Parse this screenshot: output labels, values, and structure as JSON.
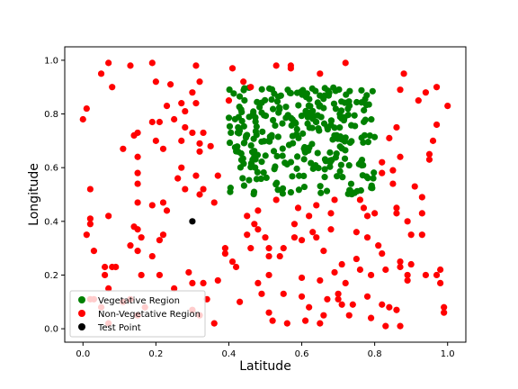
{
  "chart_data": {
    "type": "scatter",
    "xlabel": "Latitude",
    "ylabel": "Longitude",
    "xlim": [
      -0.05,
      1.05
    ],
    "ylim": [
      -0.05,
      1.05
    ],
    "xticks": [
      "0.0",
      "0.2",
      "0.4",
      "0.6",
      "0.8",
      "1.0"
    ],
    "yticks": [
      "0.0",
      "0.2",
      "0.4",
      "0.6",
      "0.8",
      "1.0"
    ],
    "xtick_values": [
      0.0,
      0.2,
      0.4,
      0.6,
      0.8,
      1.0
    ],
    "ytick_values": [
      0.0,
      0.2,
      0.4,
      0.6,
      0.8,
      1.0
    ],
    "grid": false,
    "legend_position": "lower-left",
    "colors": {
      "vegetative": "#008000",
      "non_vegetative": "#ff0000",
      "test": "#000000"
    },
    "series": [
      {
        "name": "Vegetative Region",
        "color": "#008000",
        "generated": {
          "x_range": [
            0.4,
            0.8
          ],
          "y_range": [
            0.5,
            0.9
          ],
          "count": 300,
          "seed": 7
        }
      },
      {
        "name": "Non-Vegetative Region",
        "color": "#ff0000",
        "points": [
          [
            0.0,
            0.78
          ],
          [
            0.01,
            0.82
          ],
          [
            0.02,
            0.52
          ],
          [
            0.02,
            0.41
          ],
          [
            0.02,
            0.39
          ],
          [
            0.01,
            0.35
          ],
          [
            0.03,
            0.29
          ],
          [
            0.02,
            0.11
          ],
          [
            0.03,
            0.11
          ],
          [
            0.05,
            0.95
          ],
          [
            0.07,
            0.99
          ],
          [
            0.08,
            0.9
          ],
          [
            0.07,
            0.42
          ],
          [
            0.06,
            0.2
          ],
          [
            0.06,
            0.23
          ],
          [
            0.08,
            0.23
          ],
          [
            0.09,
            0.23
          ],
          [
            0.07,
            0.15
          ],
          [
            0.05,
            0.08
          ],
          [
            0.07,
            0.02
          ],
          [
            0.11,
            0.67
          ],
          [
            0.13,
            0.98
          ],
          [
            0.15,
            0.73
          ],
          [
            0.14,
            0.72
          ],
          [
            0.15,
            0.64
          ],
          [
            0.15,
            0.58
          ],
          [
            0.15,
            0.54
          ],
          [
            0.15,
            0.47
          ],
          [
            0.14,
            0.38
          ],
          [
            0.15,
            0.37
          ],
          [
            0.16,
            0.34
          ],
          [
            0.13,
            0.31
          ],
          [
            0.15,
            0.29
          ],
          [
            0.16,
            0.2
          ],
          [
            0.13,
            0.11
          ],
          [
            0.11,
            0.1
          ],
          [
            0.17,
            0.08
          ],
          [
            0.15,
            0.05
          ],
          [
            0.19,
            0.99
          ],
          [
            0.2,
            0.92
          ],
          [
            0.19,
            0.77
          ],
          [
            0.21,
            0.77
          ],
          [
            0.2,
            0.7
          ],
          [
            0.22,
            0.67
          ],
          [
            0.22,
            0.47
          ],
          [
            0.23,
            0.44
          ],
          [
            0.19,
            0.46
          ],
          [
            0.22,
            0.35
          ],
          [
            0.21,
            0.33
          ],
          [
            0.21,
            0.2
          ],
          [
            0.19,
            0.27
          ],
          [
            0.24,
            0.91
          ],
          [
            0.23,
            0.83
          ],
          [
            0.25,
            0.78
          ],
          [
            0.27,
            0.84
          ],
          [
            0.28,
            0.81
          ],
          [
            0.28,
            0.75
          ],
          [
            0.27,
            0.7
          ],
          [
            0.27,
            0.6
          ],
          [
            0.26,
            0.56
          ],
          [
            0.28,
            0.52
          ],
          [
            0.29,
            0.21
          ],
          [
            0.3,
            0.17
          ],
          [
            0.3,
            0.07
          ],
          [
            0.31,
            0.98
          ],
          [
            0.3,
            0.88
          ],
          [
            0.32,
            0.92
          ],
          [
            0.31,
            0.84
          ],
          [
            0.33,
            0.73
          ],
          [
            0.3,
            0.73
          ],
          [
            0.32,
            0.69
          ],
          [
            0.32,
            0.66
          ],
          [
            0.31,
            0.57
          ],
          [
            0.33,
            0.52
          ],
          [
            0.32,
            0.5
          ],
          [
            0.33,
            0.17
          ],
          [
            0.34,
            0.11
          ],
          [
            0.32,
            0.05
          ],
          [
            0.35,
            0.68
          ],
          [
            0.37,
            0.57
          ],
          [
            0.36,
            0.47
          ],
          [
            0.37,
            0.18
          ],
          [
            0.39,
            0.28
          ],
          [
            0.39,
            0.3
          ],
          [
            0.41,
            0.97
          ],
          [
            0.4,
            0.85
          ],
          [
            0.41,
            0.25
          ],
          [
            0.42,
            0.23
          ],
          [
            0.43,
            0.1
          ],
          [
            0.44,
            0.92
          ],
          [
            0.46,
            0.9
          ],
          [
            0.45,
            0.42
          ],
          [
            0.45,
            0.35
          ],
          [
            0.46,
            0.3
          ],
          [
            0.47,
            0.39
          ],
          [
            0.48,
            0.37
          ],
          [
            0.48,
            0.17
          ],
          [
            0.48,
            0.44
          ],
          [
            0.49,
            0.13
          ],
          [
            0.5,
            0.34
          ],
          [
            0.51,
            0.3
          ],
          [
            0.51,
            0.27
          ],
          [
            0.51,
            0.2
          ],
          [
            0.51,
            0.06
          ],
          [
            0.52,
            0.03
          ],
          [
            0.53,
            0.98
          ],
          [
            0.53,
            0.48
          ],
          [
            0.54,
            0.27
          ],
          [
            0.55,
            0.3
          ],
          [
            0.55,
            0.13
          ],
          [
            0.56,
            0.02
          ],
          [
            0.57,
            0.97
          ],
          [
            0.57,
            0.98
          ],
          [
            0.58,
            0.39
          ],
          [
            0.59,
            0.45
          ],
          [
            0.6,
            0.33
          ],
          [
            0.6,
            0.19
          ],
          [
            0.6,
            0.12
          ],
          [
            0.61,
            0.03
          ],
          [
            0.62,
            0.42
          ],
          [
            0.62,
            0.08
          ],
          [
            0.63,
            0.36
          ],
          [
            0.64,
            0.46
          ],
          [
            0.65,
            0.95
          ],
          [
            0.64,
            0.34
          ],
          [
            0.65,
            0.02
          ],
          [
            0.65,
            0.18
          ],
          [
            0.66,
            0.29
          ],
          [
            0.66,
            0.05
          ],
          [
            0.67,
            0.11
          ],
          [
            0.68,
            0.43
          ],
          [
            0.68,
            0.37
          ],
          [
            0.69,
            0.48
          ],
          [
            0.69,
            0.21
          ],
          [
            0.7,
            0.13
          ],
          [
            0.7,
            0.11
          ],
          [
            0.71,
            0.24
          ],
          [
            0.71,
            0.09
          ],
          [
            0.72,
            0.99
          ],
          [
            0.72,
            0.17
          ],
          [
            0.74,
            0.09
          ],
          [
            0.75,
            0.36
          ],
          [
            0.75,
            0.26
          ],
          [
            0.76,
            0.22
          ],
          [
            0.76,
            0.48
          ],
          [
            0.77,
            0.45
          ],
          [
            0.78,
            0.42
          ],
          [
            0.78,
            0.34
          ],
          [
            0.78,
            0.12
          ],
          [
            0.79,
            0.2
          ],
          [
            0.79,
            0.04
          ],
          [
            0.8,
            0.43
          ],
          [
            0.81,
            0.31
          ],
          [
            0.82,
            0.62
          ],
          [
            0.82,
            0.58
          ],
          [
            0.82,
            0.28
          ],
          [
            0.83,
            0.22
          ],
          [
            0.82,
            0.09
          ],
          [
            0.83,
            0.01
          ],
          [
            0.84,
            0.71
          ],
          [
            0.85,
            0.59
          ],
          [
            0.85,
            0.54
          ],
          [
            0.86,
            0.43
          ],
          [
            0.87,
            0.89
          ],
          [
            0.86,
            0.75
          ],
          [
            0.87,
            0.64
          ],
          [
            0.86,
            0.45
          ],
          [
            0.87,
            0.25
          ],
          [
            0.87,
            0.23
          ],
          [
            0.87,
            0.01
          ],
          [
            0.86,
            0.07
          ],
          [
            0.88,
            0.95
          ],
          [
            0.89,
            0.18
          ],
          [
            0.89,
            0.2
          ],
          [
            0.89,
            0.4
          ],
          [
            0.9,
            0.24
          ],
          [
            0.9,
            0.35
          ],
          [
            0.91,
            0.53
          ],
          [
            0.94,
            0.88
          ],
          [
            0.94,
            0.2
          ],
          [
            0.93,
            0.49
          ],
          [
            0.93,
            0.43
          ],
          [
            0.93,
            0.35
          ],
          [
            0.95,
            0.65
          ],
          [
            0.95,
            0.63
          ],
          [
            0.96,
            0.7
          ],
          [
            0.97,
            0.76
          ],
          [
            0.97,
            0.2
          ],
          [
            0.97,
            0.9
          ],
          [
            0.98,
            0.17
          ],
          [
            0.98,
            0.22
          ],
          [
            0.99,
            0.08
          ],
          [
            0.99,
            0.06
          ],
          [
            1.0,
            0.83
          ],
          [
            0.92,
            0.85
          ],
          [
            0.84,
            0.08
          ],
          [
            0.73,
            0.05
          ],
          [
            0.58,
            0.34
          ],
          [
            0.36,
            0.02
          ],
          [
            0.25,
            0.15
          ]
        ]
      },
      {
        "name": "Test Point",
        "color": "#000000",
        "points": [
          [
            0.3,
            0.4
          ]
        ]
      }
    ]
  }
}
